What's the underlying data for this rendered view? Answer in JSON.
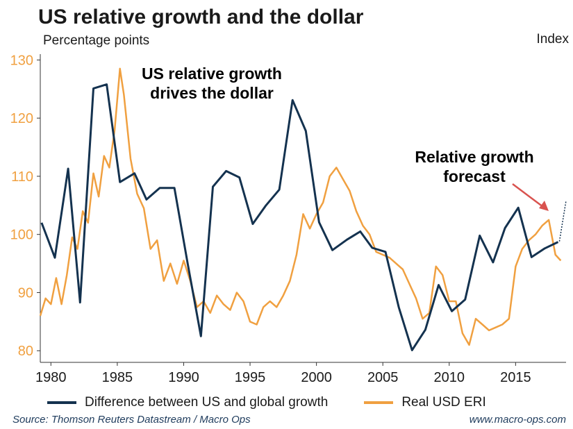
{
  "title": "US relative growth and the dollar",
  "chart_data": {
    "type": "line",
    "title": "US relative growth and the dollar",
    "ylabel_left": "Percentage points",
    "ylabel_right": "Index",
    "xlabel": "",
    "xlim": [
      1979.2,
      2018.8
    ],
    "ylim": [
      78,
      131
    ],
    "x_ticks": [
      "1980",
      "1985",
      "1990",
      "1995",
      "2000",
      "2005",
      "2010",
      "2015"
    ],
    "y_ticks": [
      "80",
      "90",
      "100",
      "110",
      "120",
      "130"
    ],
    "series": [
      {
        "name": "Difference between US and global growth",
        "color": "#14324f",
        "x": [
          1979.3,
          1980.3,
          1981.3,
          1982.2,
          1983.2,
          1984.2,
          1985.2,
          1986.3,
          1987.2,
          1988.2,
          1989.3,
          1990.3,
          1991.3,
          1992.2,
          1993.2,
          1994.2,
          1995.2,
          1996.2,
          1997.2,
          1998.2,
          1999.2,
          2000.2,
          2001.2,
          2002.3,
          2003.3,
          2004.2,
          2005.2,
          2006.2,
          2007.2,
          2008.2,
          2009.2,
          2010.2,
          2011.2,
          2012.3,
          2013.3,
          2014.2,
          2015.2,
          2016.2,
          2017.2,
          2018.2
        ],
        "values": [
          102.0,
          96.0,
          111.3,
          88.3,
          125.1,
          125.8,
          109.0,
          110.5,
          106.0,
          108.0,
          108.0,
          95.0,
          82.5,
          108.2,
          110.9,
          109.8,
          101.8,
          105.0,
          107.7,
          123.1,
          117.8,
          102.1,
          97.3,
          99.1,
          100.5,
          97.7,
          97.0,
          87.5,
          80.1,
          83.6,
          91.3,
          86.8,
          88.8,
          99.8,
          95.2,
          101.1,
          104.6,
          96.1,
          97.6,
          98.7
        ]
      },
      {
        "name": "Real USD ERI",
        "color": "#f0a040",
        "x": [
          1979.2,
          1979.6,
          1980.0,
          1980.4,
          1980.8,
          1981.2,
          1981.6,
          1982.0,
          1982.4,
          1982.8,
          1983.2,
          1983.6,
          1984.0,
          1984.4,
          1984.8,
          1985.2,
          1985.5,
          1986.0,
          1986.5,
          1987.0,
          1987.5,
          1988.0,
          1988.5,
          1989.0,
          1989.5,
          1990.0,
          1990.5,
          1991.0,
          1991.5,
          1992.0,
          1992.5,
          1993.0,
          1993.5,
          1994.0,
          1994.5,
          1995.0,
          1995.5,
          1996.0,
          1996.5,
          1997.0,
          1997.5,
          1998.0,
          1998.5,
          1999.0,
          1999.5,
          2000.0,
          2000.5,
          2001.0,
          2001.5,
          2002.0,
          2002.5,
          2003.0,
          2003.5,
          2004.0,
          2004.5,
          2005.0,
          2005.5,
          2006.0,
          2006.5,
          2007.0,
          2007.5,
          2008.0,
          2008.5,
          2009.0,
          2009.5,
          2010.0,
          2010.5,
          2011.0,
          2011.5,
          2012.0,
          2012.5,
          2013.0,
          2013.5,
          2014.0,
          2014.5,
          2015.0,
          2015.5,
          2016.0,
          2016.5,
          2017.0,
          2017.5,
          2018.0,
          2018.4
        ],
        "values": [
          86.0,
          89.0,
          88.0,
          92.5,
          88.0,
          93.0,
          99.5,
          97.5,
          104.0,
          102.0,
          110.5,
          106.5,
          113.5,
          111.5,
          118.0,
          128.5,
          124.0,
          113.0,
          107.0,
          104.5,
          97.5,
          99.0,
          92.0,
          95.0,
          91.5,
          95.5,
          92.0,
          87.5,
          88.5,
          86.5,
          89.5,
          88.0,
          87.0,
          90.0,
          88.5,
          85.0,
          84.5,
          87.5,
          88.5,
          87.5,
          89.5,
          92.0,
          96.5,
          103.5,
          101.0,
          103.5,
          105.5,
          110.0,
          111.5,
          109.5,
          107.5,
          104.0,
          101.5,
          100.0,
          97.0,
          96.5,
          96.0,
          95.0,
          94.0,
          91.5,
          89.0,
          85.5,
          86.5,
          94.5,
          93.0,
          88.5,
          88.5,
          83.0,
          81.0,
          85.5,
          84.5,
          83.5,
          84.0,
          84.5,
          85.5,
          94.5,
          97.5,
          99.0,
          100.0,
          101.5,
          102.5,
          96.5,
          95.5
        ]
      }
    ],
    "forecast": {
      "x": [
        2018.3,
        2018.8
      ],
      "values": [
        98.8,
        105.8
      ]
    },
    "annotations": [
      {
        "text": "US relative growth drives the dollar",
        "lines": [
          "US relative growth",
          "drives the dollar"
        ]
      },
      {
        "text": "Relative growth forecast",
        "lines": [
          "Relative growth",
          "forecast"
        ]
      }
    ]
  },
  "legend": {
    "series1": "Difference between US and global growth",
    "series2": "Real USD ERI"
  },
  "footer": {
    "source": "Source: Thomson Reuters Datastream / Macro Ops",
    "url": "www.macro-ops.com"
  },
  "colors": {
    "navy": "#14324f",
    "orange": "#f0a040",
    "arrow": "#d9534f",
    "axis": "#333333"
  }
}
